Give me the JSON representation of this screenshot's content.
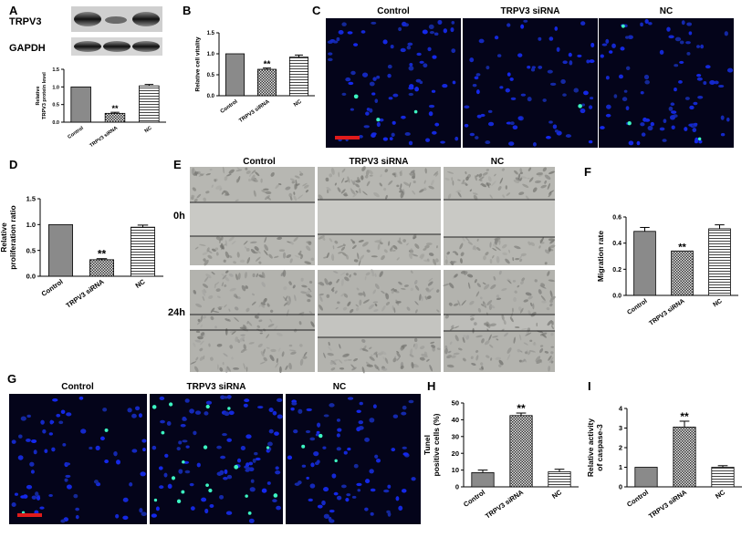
{
  "panels": {
    "A": {
      "letter": "A",
      "blot_labels": [
        "TRPV3",
        "GAPDH"
      ],
      "ylabel_lines": [
        "Relative",
        "TRPV3 protein level"
      ],
      "categories": [
        "Control",
        "TRPV3 siRNA",
        "NC"
      ],
      "yticks": [
        "0.0",
        "0.5",
        "1.0",
        "1.5"
      ],
      "values": [
        1.0,
        0.25,
        1.03
      ],
      "errors": [
        0.0,
        0.03,
        0.04
      ],
      "ylim": [
        0,
        1.5
      ],
      "sig": [
        "",
        "**",
        ""
      ]
    },
    "B": {
      "letter": "B",
      "ylabel_lines": [
        "Relative cell vitality"
      ],
      "categories": [
        "Control",
        "TRPV3 siRNA",
        "NC"
      ],
      "yticks": [
        "0.0",
        "0.5",
        "1.0",
        "1.5"
      ],
      "values": [
        1.0,
        0.63,
        0.92
      ],
      "errors": [
        0.0,
        0.03,
        0.05
      ],
      "ylim": [
        0,
        1.5
      ],
      "sig": [
        "",
        "**",
        ""
      ]
    },
    "C": {
      "letter": "C",
      "titles": [
        "Control",
        "TRPV3 siRNA",
        "NC"
      ]
    },
    "D": {
      "letter": "D",
      "ylabel_lines": [
        "Relative",
        "proliferation ratio"
      ],
      "categories": [
        "Control",
        "TRPV3 siRNA",
        "NC"
      ],
      "yticks": [
        "0.0",
        "0.5",
        "1.0",
        "1.5"
      ],
      "values": [
        1.0,
        0.32,
        0.95
      ],
      "errors": [
        0.0,
        0.02,
        0.04
      ],
      "ylim": [
        0,
        1.5
      ],
      "sig": [
        "",
        "**",
        ""
      ]
    },
    "E": {
      "letter": "E",
      "titles": [
        "Control",
        "TRPV3 siRNA",
        "NC"
      ],
      "rows": [
        "0h",
        "24h"
      ]
    },
    "F": {
      "letter": "F",
      "ylabel_lines": [
        "Migration rate"
      ],
      "categories": [
        "Control",
        "TRPV3 siRNA",
        "NC"
      ],
      "yticks": [
        "0.0",
        "0.2",
        "0.4",
        "0.6"
      ],
      "values": [
        0.49,
        0.34,
        0.51
      ],
      "errors": [
        0.03,
        0.0,
        0.03
      ],
      "ylim": [
        0,
        0.6
      ],
      "sig": [
        "",
        "**",
        ""
      ]
    },
    "G": {
      "letter": "G",
      "titles": [
        "Control",
        "TRPV3 siRNA",
        "NC"
      ]
    },
    "H": {
      "letter": "H",
      "ylabel_lines": [
        "Tunel",
        "positive cells (%)"
      ],
      "categories": [
        "Control",
        "TRPV3 siRNA",
        "NC"
      ],
      "yticks": [
        "0",
        "10",
        "20",
        "30",
        "40",
        "50"
      ],
      "values": [
        8.5,
        42.5,
        9.0
      ],
      "errors": [
        1.5,
        1.5,
        1.5
      ],
      "ylim": [
        0,
        50
      ],
      "sig": [
        "",
        "**",
        ""
      ]
    },
    "I": {
      "letter": "I",
      "ylabel_lines": [
        "Relative activity",
        "of caspase-3"
      ],
      "categories": [
        "Control",
        "TRPV3 siRNA",
        "NC"
      ],
      "yticks": [
        "0",
        "1",
        "2",
        "3",
        "4"
      ],
      "values": [
        1.0,
        3.05,
        1.0
      ],
      "errors": [
        0.0,
        0.3,
        0.08
      ],
      "ylim": [
        0,
        4
      ],
      "sig": [
        "",
        "**",
        ""
      ]
    }
  },
  "chart_data": [
    {
      "type": "bar",
      "ylabel": "Relative TRPV3 protein level",
      "categories": [
        "Control",
        "TRPV3 siRNA",
        "NC"
      ],
      "values": [
        1.0,
        0.25,
        1.03
      ],
      "ylim": [
        0,
        1.5
      ]
    },
    {
      "type": "bar",
      "ylabel": "Relative cell vitality",
      "categories": [
        "Control",
        "TRPV3 siRNA",
        "NC"
      ],
      "values": [
        1.0,
        0.63,
        0.92
      ],
      "ylim": [
        0,
        1.5
      ]
    },
    {
      "type": "bar",
      "ylabel": "Relative proliferation ratio",
      "categories": [
        "Control",
        "TRPV3 siRNA",
        "NC"
      ],
      "values": [
        1.0,
        0.32,
        0.95
      ],
      "ylim": [
        0,
        1.5
      ]
    },
    {
      "type": "bar",
      "ylabel": "Migration rate",
      "categories": [
        "Control",
        "TRPV3 siRNA",
        "NC"
      ],
      "values": [
        0.49,
        0.34,
        0.51
      ],
      "ylim": [
        0,
        0.6
      ]
    },
    {
      "type": "bar",
      "ylabel": "Tunel positive cells (%)",
      "categories": [
        "Control",
        "TRPV3 siRNA",
        "NC"
      ],
      "values": [
        8.5,
        42.5,
        9.0
      ],
      "ylim": [
        0,
        50
      ]
    },
    {
      "type": "bar",
      "ylabel": "Relative activity of caspase-3",
      "categories": [
        "Control",
        "TRPV3 siRNA",
        "NC"
      ],
      "values": [
        1.0,
        3.05,
        1.0
      ],
      "ylim": [
        0,
        4
      ]
    }
  ]
}
